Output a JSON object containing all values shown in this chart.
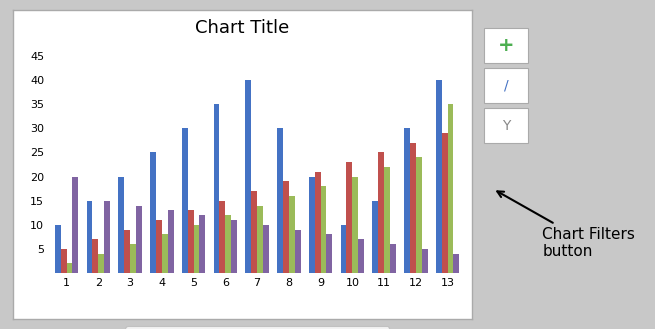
{
  "title": "Chart Title",
  "categories": [
    1,
    2,
    3,
    4,
    5,
    6,
    7,
    8,
    9,
    10,
    11,
    12,
    13
  ],
  "series": {
    "Series1": [
      10,
      15,
      20,
      25,
      30,
      35,
      40,
      30,
      20,
      10,
      15,
      30,
      40
    ],
    "Series2": [
      5,
      7,
      9,
      11,
      13,
      15,
      17,
      19,
      21,
      23,
      25,
      27,
      29
    ],
    "Series3": [
      2,
      4,
      6,
      8,
      10,
      12,
      14,
      16,
      18,
      20,
      22,
      24,
      35
    ],
    "Series4": [
      20,
      15,
      14,
      13,
      12,
      11,
      10,
      9,
      8,
      7,
      6,
      5,
      4
    ]
  },
  "colors": {
    "Series1": "#4472C4",
    "Series2": "#C0504D",
    "Series3": "#9BBB59",
    "Series4": "#8064A2"
  },
  "ylim": [
    0,
    45
  ],
  "yticks": [
    0,
    5,
    10,
    15,
    20,
    25,
    30,
    35,
    40,
    45
  ],
  "fig_bg": "#C8C8C8",
  "chart_bg": "#FFFFFF",
  "chart_border": "#AAAAAA",
  "grid_color": "#FFFFFF",
  "title_fontsize": 13,
  "legend_fontsize": 8,
  "tick_fontsize": 8,
  "annotation_text": "Chart Filters\nbutton",
  "annotation_fontsize": 11,
  "icon_plus_color": "#4CAF50",
  "icon_brush_color": "#4472C4",
  "icon_filter_color": "#888888"
}
